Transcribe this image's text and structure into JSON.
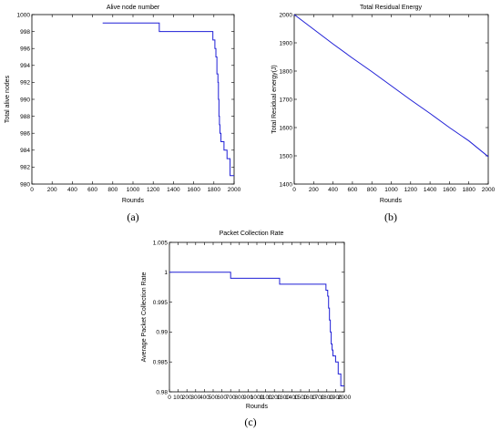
{
  "colors": {
    "series": "#1f1fd6",
    "axis": "#000000"
  },
  "chart_data": [
    {
      "type": "line",
      "title": "Alive node number",
      "xlabel": "Rounds",
      "ylabel": "Total alive nodes",
      "xlim": [
        0,
        2000
      ],
      "ylim": [
        980,
        1000
      ],
      "xticks": [
        0,
        200,
        400,
        600,
        800,
        1000,
        1200,
        1400,
        1600,
        1800,
        2000
      ],
      "yticks": [
        980,
        982,
        984,
        986,
        988,
        990,
        992,
        994,
        996,
        998,
        1000
      ],
      "step": true,
      "grid": false,
      "caption": "(a)",
      "series": [
        {
          "x": [
            700,
            1260,
            1790,
            1810,
            1820,
            1830,
            1840,
            1845,
            1850,
            1855,
            1860,
            1870,
            1880,
            1900,
            1930,
            1960,
            2000
          ],
          "y": [
            999,
            998,
            997,
            996,
            995,
            993,
            992,
            990,
            988,
            987,
            986,
            985,
            985,
            984,
            983,
            981,
            981
          ]
        }
      ]
    },
    {
      "type": "line",
      "title": "Total Residual Energy",
      "xlabel": "Rounds",
      "ylabel": "Total Residual energy(J)",
      "xlim": [
        0,
        2000
      ],
      "ylim": [
        1400,
        2000
      ],
      "xticks": [
        0,
        200,
        400,
        600,
        800,
        1000,
        1200,
        1400,
        1600,
        1800,
        2000
      ],
      "yticks": [
        1400,
        1500,
        1600,
        1700,
        1800,
        1900,
        2000
      ],
      "step": false,
      "grid": false,
      "caption": "(b)",
      "series": [
        {
          "x": [
            0,
            200,
            400,
            600,
            800,
            1000,
            1200,
            1400,
            1600,
            1800,
            2000
          ],
          "y": [
            2000,
            1948,
            1896,
            1846,
            1798,
            1748,
            1698,
            1650,
            1600,
            1553,
            1497
          ]
        }
      ]
    },
    {
      "type": "line",
      "title": "Packet Collection Rate",
      "xlabel": "Rounds",
      "ylabel": "Average Packet Collection Rate",
      "xlim": [
        0,
        2000
      ],
      "ylim": [
        0.98,
        1.005
      ],
      "xticks": [
        0,
        100,
        200,
        300,
        400,
        500,
        600,
        700,
        800,
        900,
        1000,
        1100,
        1200,
        1300,
        1400,
        1500,
        1600,
        1700,
        1800,
        1900,
        2000
      ],
      "yticks": [
        0.98,
        0.985,
        0.99,
        0.995,
        1,
        1.005
      ],
      "step": true,
      "grid": false,
      "caption": "(c)",
      "series": [
        {
          "x": [
            0,
            700,
            1260,
            1790,
            1810,
            1820,
            1830,
            1840,
            1850,
            1860,
            1870,
            1900,
            1930,
            1960,
            2000
          ],
          "y": [
            1.0,
            0.999,
            0.998,
            0.997,
            0.996,
            0.994,
            0.992,
            0.99,
            0.988,
            0.987,
            0.986,
            0.985,
            0.983,
            0.981,
            0.981
          ]
        }
      ]
    }
  ]
}
